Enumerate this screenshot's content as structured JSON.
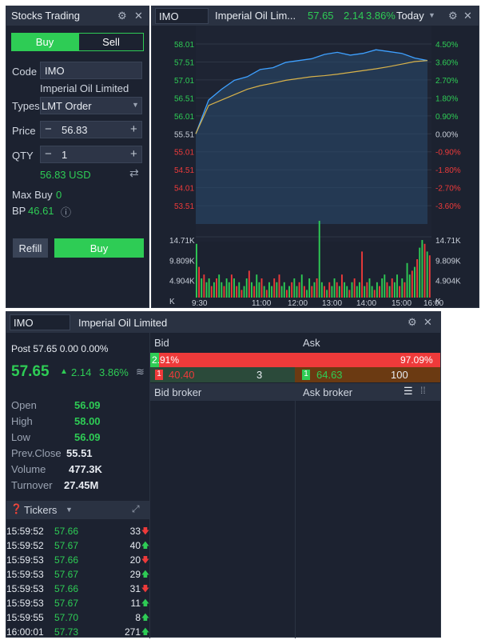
{
  "trade": {
    "title": "Stocks Trading",
    "tab_buy": "Buy",
    "tab_sell": "Sell",
    "code_label": "Code",
    "code_value": "IMO",
    "company": "Imperial Oil Limited",
    "types_label": "Types",
    "order_type": "LMT Order",
    "price_label": "Price",
    "price_value": "56.83",
    "qty_label": "QTY",
    "qty_value": "1",
    "amount": "56.83 USD",
    "max_buy_label": "Max Buy",
    "max_buy_value": "0",
    "bp_label": "BP",
    "bp_value": "46.61",
    "refill": "Refill",
    "buy": "Buy"
  },
  "chart_header": {
    "symbol": "IMO",
    "name": "Imperial Oil Lim...",
    "price": "57.65",
    "change": "2.14",
    "pct": "3.86%",
    "range": "Today"
  },
  "chart_data": [
    {
      "type": "line",
      "series": [
        {
          "values": [
            55.51,
            56.45,
            56.75,
            57.0,
            57.1,
            57.3,
            57.35,
            57.5,
            57.55,
            57.6,
            57.72,
            57.78,
            57.7,
            57.75,
            57.85,
            57.8,
            57.75,
            57.62,
            57.55
          ]
        },
        {
          "values": [
            55.51,
            56.3,
            56.45,
            56.6,
            56.75,
            56.85,
            56.92,
            57.0,
            57.05,
            57.1,
            57.13,
            57.17,
            57.22,
            57.27,
            57.32,
            57.38,
            57.45,
            57.52,
            57.55
          ]
        }
      ],
      "ylim": [
        53.0,
        58.3
      ],
      "y_ticks_left": [
        "58.01",
        "57.51",
        "57.01",
        "56.51",
        "56.01",
        "55.51",
        "55.01",
        "54.51",
        "54.01",
        "53.51"
      ],
      "y_ticks_right": [
        "4.50%",
        "3.60%",
        "2.70%",
        "1.80%",
        "0.90%",
        "0.00%",
        "-0.90%",
        "-1.80%",
        "-2.70%",
        "-3.60%"
      ]
    },
    {
      "type": "bar",
      "values": [
        14,
        8,
        5,
        6,
        4,
        5,
        3,
        4,
        5,
        6,
        4,
        3,
        5,
        4,
        6,
        5,
        3,
        4,
        2,
        3,
        5,
        7,
        4,
        3,
        6,
        4,
        5,
        3,
        2,
        4,
        3,
        5,
        4,
        6,
        3,
        4,
        2,
        3,
        4,
        5,
        3,
        4,
        6,
        3,
        2,
        5,
        3,
        4,
        5,
        20,
        4,
        3,
        2,
        4,
        3,
        5,
        4,
        3,
        6,
        4,
        3,
        2,
        4,
        5,
        3,
        4,
        12,
        3,
        4,
        5,
        3,
        2,
        4,
        3,
        5,
        6,
        4,
        3,
        5,
        4,
        6,
        3,
        5,
        4,
        9,
        6,
        7,
        8,
        10,
        13,
        15,
        14,
        12,
        11
      ],
      "colors": [
        "g",
        "r",
        "g",
        "r",
        "g",
        "g",
        "r",
        "g",
        "r",
        "g",
        "g",
        "r",
        "g",
        "g",
        "r",
        "g",
        "r",
        "g",
        "r",
        "g",
        "g",
        "r",
        "g",
        "r",
        "g",
        "g",
        "r",
        "g",
        "r",
        "g",
        "g",
        "r",
        "g",
        "r",
        "g",
        "g",
        "r",
        "g",
        "r",
        "g",
        "g",
        "r",
        "g",
        "r",
        "g",
        "g",
        "r",
        "g",
        "r",
        "g",
        "g",
        "r",
        "g",
        "r",
        "g",
        "g",
        "r",
        "g",
        "r",
        "g",
        "g",
        "r",
        "g",
        "r",
        "g",
        "g",
        "r",
        "g",
        "r",
        "g",
        "g",
        "r",
        "g",
        "r",
        "g",
        "g",
        "r",
        "g",
        "r",
        "g",
        "g",
        "r",
        "g",
        "r",
        "g",
        "g",
        "r",
        "g",
        "r",
        "g",
        "g",
        "r",
        "g",
        "r"
      ],
      "ylim": [
        0,
        15
      ],
      "y_ticks_left": [
        "14.71K",
        "9.809K",
        "4.904K",
        "K"
      ],
      "y_ticks_right": [
        "14.71K",
        "9.809K",
        "4.904K",
        "K"
      ],
      "x_ticks": [
        "9:30",
        "11:00",
        "12:00",
        "13:00",
        "14:00",
        "15:00",
        "16:00"
      ]
    }
  ],
  "quote": {
    "symbol": "IMO",
    "name": "Imperial Oil Limited",
    "post": "Post 57.65 0.00 0.00%",
    "price": "57.65",
    "arrow": "▲",
    "change": "2.14",
    "pct": "3.86%",
    "stats": [
      {
        "label": "Open",
        "value": "56.09",
        "color": "green"
      },
      {
        "label": "High",
        "value": "58.00",
        "color": "green"
      },
      {
        "label": "Low",
        "value": "56.09",
        "color": "green"
      },
      {
        "label": "Prev.Close",
        "value": "55.51",
        "color": "white"
      },
      {
        "label": "Volume",
        "value": "477.3K",
        "color": "white"
      },
      {
        "label": "Turnover",
        "value": "27.45M",
        "color": "white"
      }
    ],
    "tickers_label": "Tickers",
    "tickers": [
      {
        "time": "15:59:52",
        "price": "57.66",
        "qty": "33",
        "dir": "down"
      },
      {
        "time": "15:59:52",
        "price": "57.67",
        "qty": "40",
        "dir": "up"
      },
      {
        "time": "15:59:53",
        "price": "57.66",
        "qty": "20",
        "dir": "down"
      },
      {
        "time": "15:59:53",
        "price": "57.67",
        "qty": "29",
        "dir": "up"
      },
      {
        "time": "15:59:53",
        "price": "57.66",
        "qty": "31",
        "dir": "down"
      },
      {
        "time": "15:59:53",
        "price": "57.67",
        "qty": "11",
        "dir": "up"
      },
      {
        "time": "15:59:55",
        "price": "57.70",
        "qty": "8",
        "dir": "up"
      },
      {
        "time": "16:00:01",
        "price": "57.73",
        "qty": "271",
        "dir": "up"
      }
    ],
    "bid_label": "Bid",
    "ask_label": "Ask",
    "bid_pct": "2.91%",
    "ask_pct": "97.09%",
    "bid_pct_num": 2.91,
    "bid_level": "1",
    "bid_price": "40.40",
    "bid_qty": "3",
    "ask_level": "1",
    "ask_price": "64.63",
    "ask_qty": "100",
    "bid_broker": "Bid broker",
    "ask_broker": "Ask broker"
  },
  "colors": {
    "green": "#2ecc55",
    "red": "#ee3a3a",
    "panel": "#1c2230",
    "header": "#2a3242"
  }
}
